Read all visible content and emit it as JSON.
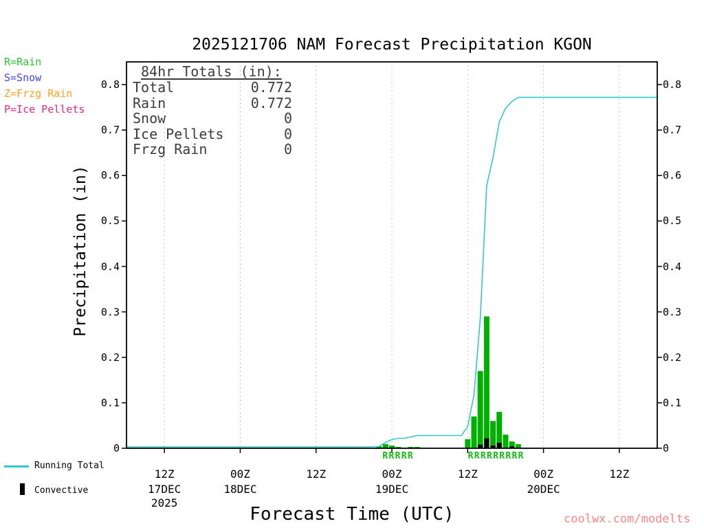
{
  "title": "2025121706 NAM Forecast Precipitation KGON",
  "watermark": "coolwx.com/modelts",
  "watermark_color": "#FF8484",
  "type_legend": [
    {
      "label": "R=Rain",
      "color": "#2DC62D"
    },
    {
      "label": "S=Snow",
      "color": "#4444EE"
    },
    {
      "label": "Z=Frzg Rain",
      "color": "#FF9E1E"
    },
    {
      "label": "P=Ice Pellets",
      "color": "#DC2888"
    }
  ],
  "totals_box": {
    "heading": "84hr Totals (in):",
    "rows": [
      {
        "label": "Total",
        "value": "0.772"
      },
      {
        "label": "Rain",
        "value": "0.772"
      },
      {
        "label": "Snow",
        "value": "0"
      },
      {
        "label": "Ice Pellets",
        "value": "0"
      },
      {
        "label": "Frzg Rain",
        "value": "0"
      }
    ]
  },
  "bottom_legend": {
    "running_total": "Running Total",
    "convective": "Convective"
  },
  "chart_data": {
    "type": "composite",
    "grid_color": "#9a9a9a",
    "x_axis": {
      "label": "Forecast Time (UTC)",
      "unit": "hours since 17DEC2025 00Z (model init 2025121706, 84hr run)",
      "range": [
        6,
        90
      ],
      "ticks": [
        {
          "hour": 12,
          "label": "12Z",
          "date": "17DEC",
          "year": "2025"
        },
        {
          "hour": 24,
          "label": "00Z",
          "date": "18DEC"
        },
        {
          "hour": 36,
          "label": "12Z"
        },
        {
          "hour": 48,
          "label": "00Z",
          "date": "19DEC"
        },
        {
          "hour": 60,
          "label": "12Z"
        },
        {
          "hour": 72,
          "label": "00Z",
          "date": "20DEC"
        },
        {
          "hour": 84,
          "label": "12Z"
        }
      ]
    },
    "y_axis": {
      "label": "Precipitation (in)",
      "range": [
        0,
        0.85
      ],
      "ticks": [
        "0",
        "0.1",
        "0.2",
        "0.3",
        "0.4",
        "0.5",
        "0.6",
        "0.7",
        "0.8"
      ],
      "grid": false
    },
    "series": [
      {
        "name": "Running Total",
        "type": "line",
        "color": "#30C8C8",
        "points": [
          [
            6,
            0
          ],
          [
            44,
            0
          ],
          [
            46,
            0.004
          ],
          [
            47,
            0.013
          ],
          [
            48,
            0.019
          ],
          [
            49,
            0.022
          ],
          [
            50,
            0.022
          ],
          [
            51,
            0.025
          ],
          [
            52,
            0.028
          ],
          [
            59,
            0.028
          ],
          [
            60,
            0.048
          ],
          [
            61,
            0.118
          ],
          [
            62,
            0.288
          ],
          [
            63,
            0.578
          ],
          [
            64,
            0.638
          ],
          [
            65,
            0.718
          ],
          [
            66,
            0.748
          ],
          [
            67,
            0.763
          ],
          [
            68,
            0.772
          ],
          [
            90,
            0.772
          ]
        ]
      },
      {
        "name": "Rain",
        "type": "bar",
        "color": "#00B000",
        "points": [
          [
            46,
            0.004
          ],
          [
            47,
            0.009
          ],
          [
            48,
            0.006
          ],
          [
            49,
            0.003
          ],
          [
            51,
            0.003
          ],
          [
            52,
            0.003
          ],
          [
            60,
            0.02
          ],
          [
            61,
            0.07
          ],
          [
            62,
            0.17
          ],
          [
            63,
            0.29
          ],
          [
            64,
            0.06
          ],
          [
            65,
            0.08
          ],
          [
            66,
            0.03
          ],
          [
            67,
            0.015
          ],
          [
            68,
            0.009
          ]
        ]
      },
      {
        "name": "Convective",
        "type": "bar",
        "color": "#000000",
        "points": [
          [
            62,
            0.008
          ],
          [
            63,
            0.022
          ],
          [
            64,
            0.006
          ],
          [
            65,
            0.012
          ],
          [
            67,
            0.004
          ]
        ]
      }
    ],
    "annotations": [
      {
        "text": "RRRRR",
        "center_hour": 49,
        "color": "#0FBE0F"
      },
      {
        "text": "RRRRRRRRR",
        "center_hour": 64.5,
        "color": "#0FBE0F"
      }
    ]
  }
}
